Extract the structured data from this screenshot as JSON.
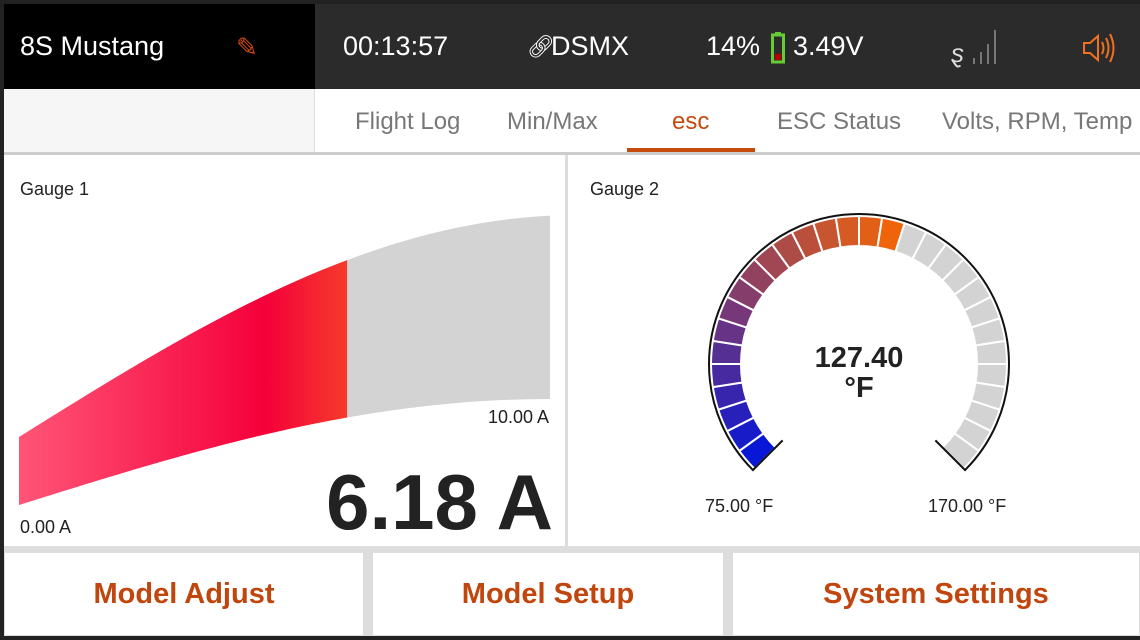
{
  "header": {
    "model_name": "8S Mustang",
    "timer": "00:13:57",
    "protocol": "DSMX",
    "battery_percent": "14%",
    "voltage": "3.49V",
    "icons": {
      "edit": "pencil-icon",
      "link": "link-icon",
      "battery": "battery-icon",
      "signal": "signal-icon",
      "sound": "speaker-icon"
    }
  },
  "tabs": [
    {
      "label": "Flight Log"
    },
    {
      "label": "Min/Max"
    },
    {
      "label": "esc",
      "active": true
    },
    {
      "label": "ESC Status"
    },
    {
      "label": "Volts, RPM, Temp"
    }
  ],
  "gauge1": {
    "title": "Gauge 1",
    "value": 6.18,
    "display": "6.18 A",
    "min_label": "0.00 A",
    "max_label": "10.00 A",
    "min": 0,
    "max": 10
  },
  "gauge2": {
    "title": "Gauge 2",
    "value": 127.4,
    "value_text": "127.40",
    "unit": "°F",
    "min": 75,
    "max": 170,
    "min_label": "75.00 °F",
    "max_label": "170.00 °F"
  },
  "buttons": [
    {
      "label": "Model Adjust"
    },
    {
      "label": "Model Setup"
    },
    {
      "label": "System Settings"
    }
  ],
  "colors": {
    "accent": "#c44a0e",
    "gray": "#d3d3d3"
  }
}
